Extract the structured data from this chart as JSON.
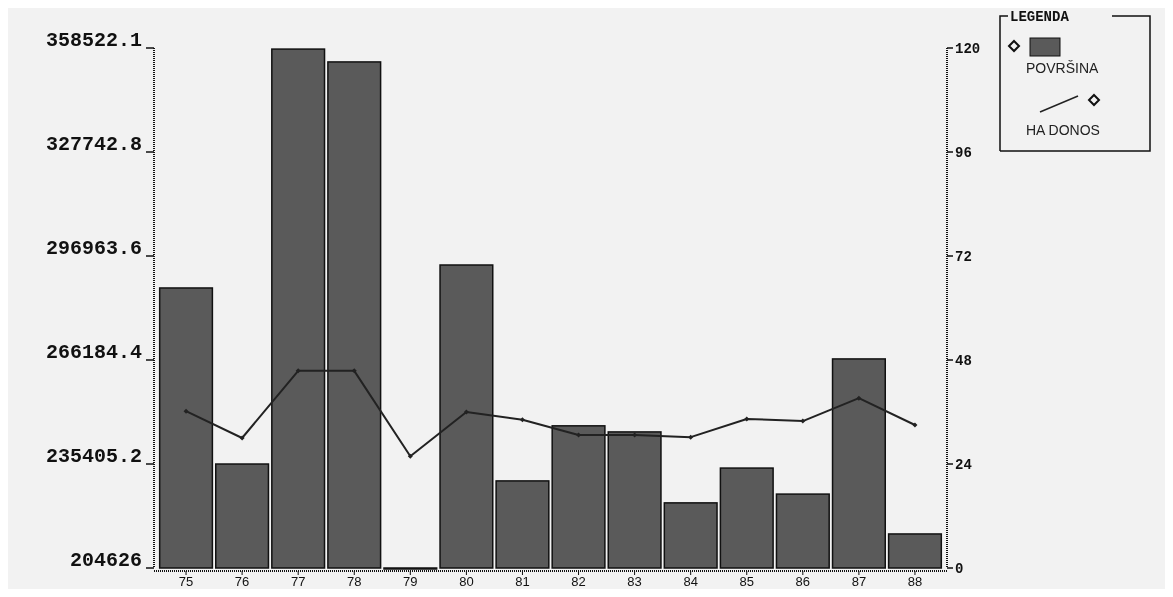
{
  "chart_data": {
    "type": "bar",
    "categories": [
      "75",
      "76",
      "77",
      "78",
      "79",
      "80",
      "81",
      "82",
      "83",
      "84",
      "85",
      "86",
      "87",
      "88"
    ],
    "series": [
      {
        "name": "POVRŠINA",
        "color": "#5a5a5a",
        "values": [
          287500,
          235400,
          358200,
          354400,
          204626,
          294300,
          230400,
          246700,
          244900,
          223900,
          234200,
          226500,
          266500,
          214700
        ]
      },
      {
        "name": "HA DONOS",
        "type": "line",
        "axis": "y2",
        "color": "#222222",
        "values": [
          36.2,
          30.0,
          45.5,
          45.5,
          25.8,
          36.0,
          34.2,
          30.7,
          30.7,
          30.2,
          34.4,
          33.9,
          39.2,
          33.0
        ]
      }
    ],
    "ylim": [
      204626,
      358522.1
    ],
    "yticks": [
      204626,
      235405.2,
      266184.4,
      296963.6,
      327742.8,
      358522.1
    ],
    "y2lim": [
      0,
      120
    ],
    "y2ticks": [
      0,
      24,
      48,
      72,
      96,
      120
    ],
    "legend": "top right",
    "legend_title": "LEGENDA",
    "marker": "diamond",
    "line_style": "solid",
    "grid": false
  }
}
